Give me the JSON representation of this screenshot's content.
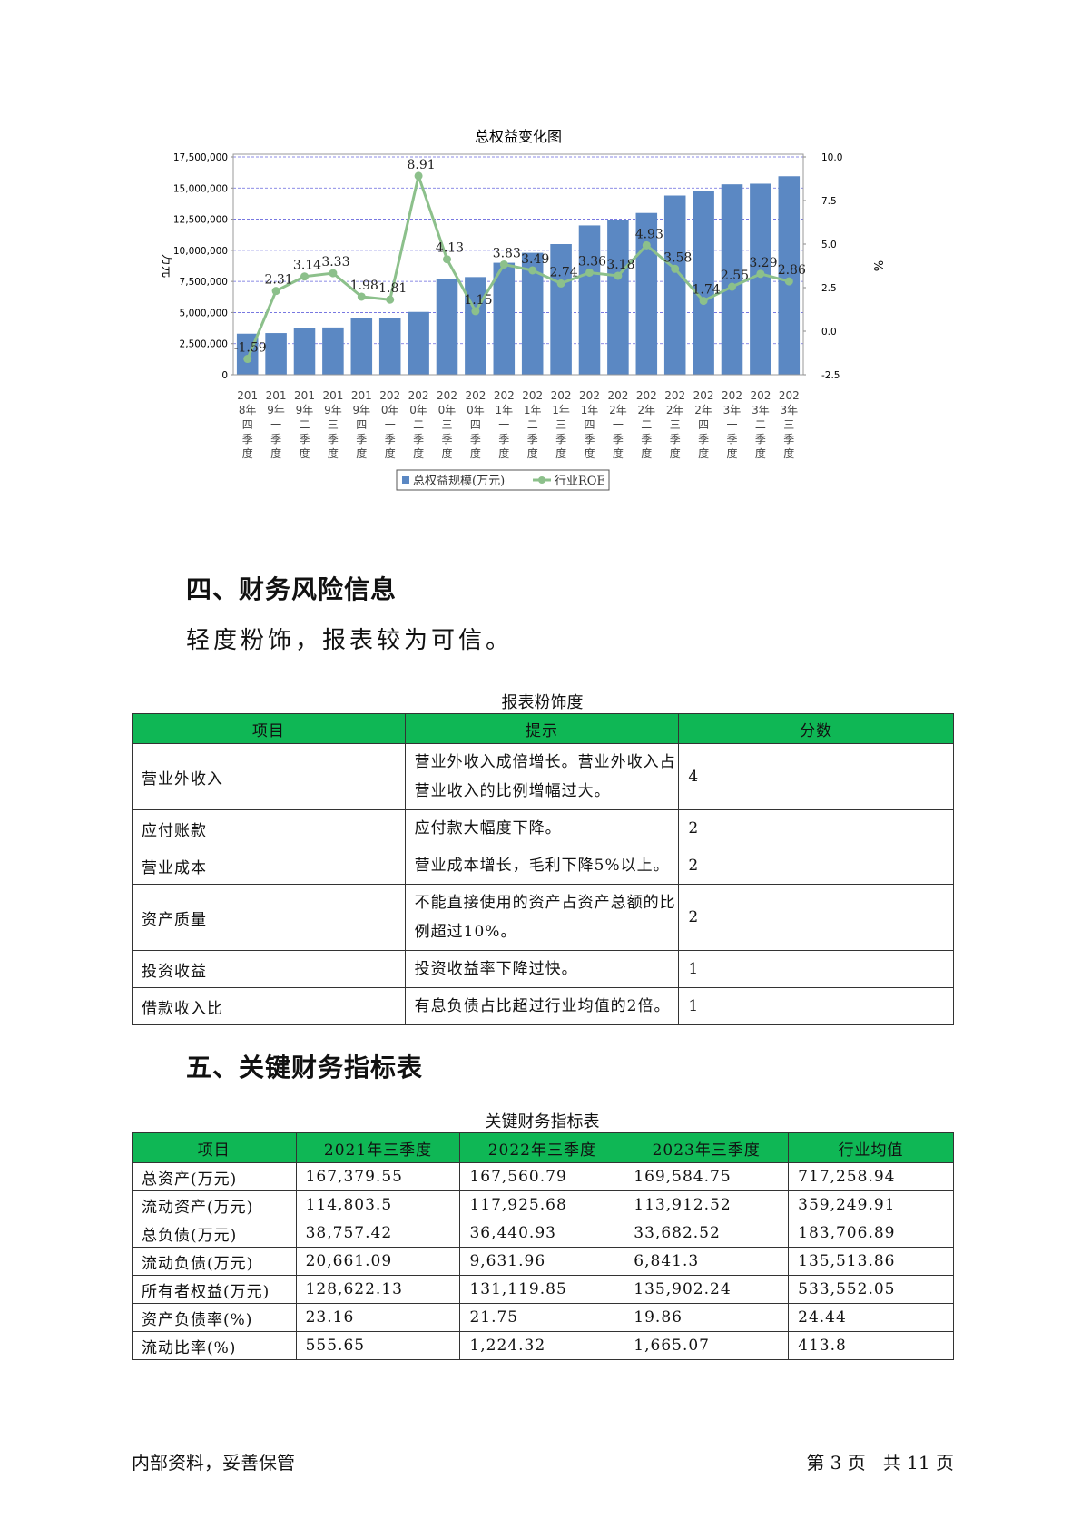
{
  "chart_data": {
    "type": "bar",
    "title": "总权益变化图",
    "categories": [
      "2018年四季度",
      "2019年一季度",
      "2019年二季度",
      "2019年三季度",
      "2019年四季度",
      "2020年一季度",
      "2020年二季度",
      "2020年三季度",
      "2020年四季度",
      "2021年一季度",
      "2021年二季度",
      "2021年三季度",
      "2021年四季度",
      "2022年一季度",
      "2022年二季度",
      "2022年三季度",
      "2022年四季度",
      "2023年一季度",
      "2023年二季度",
      "2023年三季度"
    ],
    "category_lines": [
      [
        "201",
        "8年",
        "四",
        "季",
        "度"
      ],
      [
        "201",
        "9年",
        "一",
        "季",
        "度"
      ],
      [
        "201",
        "9年",
        "二",
        "季",
        "度"
      ],
      [
        "201",
        "9年",
        "三",
        "季",
        "度"
      ],
      [
        "201",
        "9年",
        "四",
        "季",
        "度"
      ],
      [
        "202",
        "0年",
        "一",
        "季",
        "度"
      ],
      [
        "202",
        "0年",
        "二",
        "季",
        "度"
      ],
      [
        "202",
        "0年",
        "三",
        "季",
        "度"
      ],
      [
        "202",
        "0年",
        "四",
        "季",
        "度"
      ],
      [
        "202",
        "1年",
        "一",
        "季",
        "度"
      ],
      [
        "202",
        "1年",
        "二",
        "季",
        "度"
      ],
      [
        "202",
        "1年",
        "三",
        "季",
        "度"
      ],
      [
        "202",
        "1年",
        "四",
        "季",
        "度"
      ],
      [
        "202",
        "2年",
        "一",
        "季",
        "度"
      ],
      [
        "202",
        "2年",
        "二",
        "季",
        "度"
      ],
      [
        "202",
        "2年",
        "三",
        "季",
        "度"
      ],
      [
        "202",
        "2年",
        "四",
        "季",
        "度"
      ],
      [
        "202",
        "3年",
        "一",
        "季",
        "度"
      ],
      [
        "202",
        "3年",
        "二",
        "季",
        "度"
      ],
      [
        "202",
        "3年",
        "三",
        "季",
        "度"
      ]
    ],
    "series": [
      {
        "name": "总权益规模(万元)",
        "type": "bar",
        "axis": "left",
        "color": "#5b88c3",
        "values": [
          3300000,
          3350000,
          3750000,
          3800000,
          4550000,
          4550000,
          5050000,
          7700000,
          7850000,
          9000000,
          9800000,
          10500000,
          12000000,
          12450000,
          13000000,
          14400000,
          14800000,
          15300000,
          15350000,
          15950000
        ]
      },
      {
        "name": "行业ROE",
        "type": "line",
        "axis": "right",
        "color": "#8cc08b",
        "values": [
          -1.59,
          2.31,
          3.14,
          3.33,
          1.98,
          1.81,
          8.91,
          4.13,
          1.15,
          3.83,
          3.49,
          2.74,
          3.36,
          3.18,
          4.93,
          3.58,
          1.74,
          2.55,
          3.29,
          2.86
        ],
        "labels": [
          "-1.59",
          "2.31",
          "3.14",
          "3.33",
          "1.98",
          "1.81",
          "8.91",
          "4.13",
          "1.15",
          "3.83",
          "3.49",
          "2.74",
          "3.36",
          "3.18",
          "4.93",
          "3.58",
          "1.74",
          "2.55",
          "3.29",
          "2.86"
        ]
      }
    ],
    "ylabel_left": "万元",
    "ylabel_right": "%",
    "ylim_left": [
      0,
      17500000
    ],
    "yticks_left": [
      0,
      2500000,
      5000000,
      7500000,
      10000000,
      12500000,
      15000000,
      17500000
    ],
    "ytick_labels_left": [
      "0",
      "2,500,000",
      "5,000,000",
      "7,500,000",
      "10,000,000",
      "12,500,000",
      "15,000,000",
      "17,500,000"
    ],
    "ylim_right": [
      -2.5,
      10.0
    ],
    "yticks_right": [
      -2.5,
      0,
      2.5,
      5,
      7.5,
      10
    ],
    "ytick_labels_right": [
      "-2.5",
      "0.0",
      "2.5",
      "5.0",
      "7.5",
      "10.0"
    ],
    "grid": true,
    "legend_position": "bottom"
  },
  "section4": {
    "title": "四、财务风险信息",
    "summary": "轻度粉饰，报表较为可信。",
    "table_caption": "报表粉饰度",
    "headers": [
      "项目",
      "提示",
      "分数"
    ],
    "rows": [
      [
        "营业外收入",
        "营业外收入成倍增长。营业外收入占营业收入的比例增幅过大。",
        "4"
      ],
      [
        "应付账款",
        "应付款大幅度下降。",
        "2"
      ],
      [
        "营业成本",
        "营业成本增长，毛利下降5%以上。",
        "2"
      ],
      [
        "资产质量",
        "不能直接使用的资产占资产总额的比例超过10%。",
        "2"
      ],
      [
        "投资收益",
        "投资收益率下降过快。",
        "1"
      ],
      [
        "借款收入比",
        "有息负债占比超过行业均值的2倍。",
        "1"
      ]
    ]
  },
  "section5": {
    "title": "五、关键财务指标表",
    "table_caption": "关键财务指标表",
    "headers": [
      "项目",
      "2021年三季度",
      "2022年三季度",
      "2023年三季度",
      "行业均值"
    ],
    "rows": [
      [
        "总资产(万元)",
        "167,379.55",
        "167,560.79",
        "169,584.75",
        "717,258.94"
      ],
      [
        "流动资产(万元)",
        "114,803.5",
        "117,925.68",
        "113,912.52",
        "359,249.91"
      ],
      [
        "总负债(万元)",
        "38,757.42",
        "36,440.93",
        "33,682.52",
        "183,706.89"
      ],
      [
        "流动负债(万元)",
        "20,661.09",
        "9,631.96",
        "6,841.3",
        "135,513.86"
      ],
      [
        "所有者权益(万元)",
        "128,622.13",
        "131,119.85",
        "135,902.24",
        "533,552.05"
      ],
      [
        "资产负债率(%)",
        "23.16",
        "21.75",
        "19.86",
        "24.44"
      ],
      [
        "流动比率(%)",
        "555.65",
        "1,224.32",
        "1,665.07",
        "413.8"
      ]
    ]
  },
  "footer": {
    "left": "内部资料，妥善保管",
    "right": "第 3 页   共 11 页"
  }
}
